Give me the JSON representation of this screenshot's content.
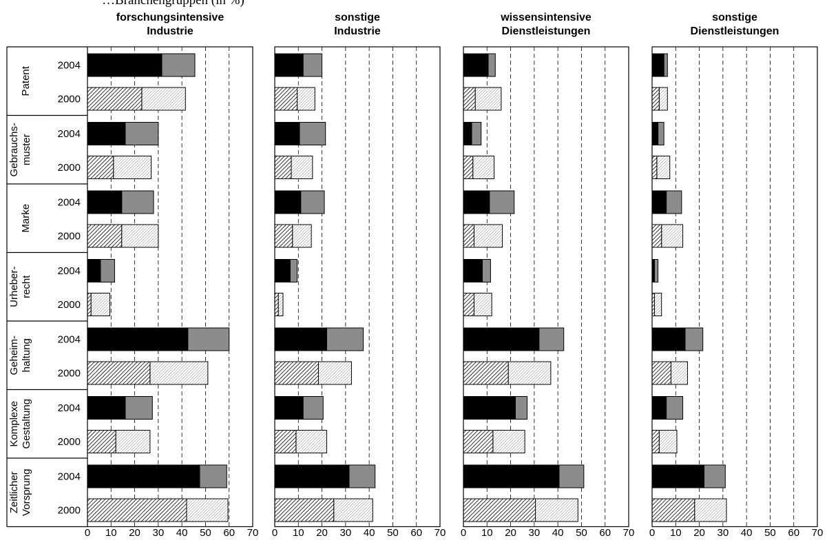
{
  "caption": "…Branchengruppen (in %)",
  "chart_data": {
    "type": "bar",
    "orientation": "horizontal",
    "stacked": true,
    "xlim": [
      0,
      70
    ],
    "xticks": [
      "0",
      "10",
      "20",
      "30",
      "40",
      "50",
      "60",
      "70"
    ],
    "grid": "vertical dashed lines",
    "groups": [
      "Patent",
      "Gebrauchs-\nmuster",
      "Marke",
      "Urheber-\nrecht",
      "Geheim-\nhaltung",
      "Komplexe\nGestaltung",
      "Zeitlicher\nVorsprung"
    ],
    "years": [
      "2004",
      "2000"
    ],
    "panels": [
      {
        "title": "forschungsintensive\nIndustrie",
        "values": [
          [
            [
              31.5,
              45.5
            ],
            [
              23.0,
              41.5
            ]
          ],
          [
            [
              16.0,
              30.0
            ],
            [
              11.0,
              27.0
            ]
          ],
          [
            [
              14.5,
              28.0
            ],
            [
              14.5,
              30.0
            ]
          ],
          [
            [
              5.5,
              11.5
            ],
            [
              1.5,
              9.5
            ]
          ],
          [
            [
              42.5,
              60.0
            ],
            [
              26.5,
              51.0
            ]
          ],
          [
            [
              16.0,
              27.5
            ],
            [
              12.0,
              26.5
            ]
          ],
          [
            [
              47.5,
              59.0
            ],
            [
              42.0,
              59.5
            ]
          ]
        ]
      },
      {
        "title": "sonstige\nIndustrie",
        "values": [
          [
            [
              12.0,
              20.0
            ],
            [
              9.5,
              17.0
            ]
          ],
          [
            [
              10.5,
              21.5
            ],
            [
              7.0,
              16.0
            ]
          ],
          [
            [
              11.0,
              21.0
            ],
            [
              7.5,
              15.5
            ]
          ],
          [
            [
              6.5,
              9.5
            ],
            [
              1.5,
              3.5
            ]
          ],
          [
            [
              22.0,
              37.5
            ],
            [
              18.5,
              32.5
            ]
          ],
          [
            [
              12.0,
              20.5
            ],
            [
              9.0,
              22.0
            ]
          ],
          [
            [
              31.5,
              42.5
            ],
            [
              25.0,
              41.5
            ]
          ]
        ]
      },
      {
        "title": "wissensintensive\nDienstleistungen",
        "values": [
          [
            [
              10.5,
              13.5
            ],
            [
              5.0,
              16.0
            ]
          ],
          [
            [
              3.5,
              7.5
            ],
            [
              4.0,
              13.0
            ]
          ],
          [
            [
              11.0,
              21.5
            ],
            [
              4.5,
              16.5
            ]
          ],
          [
            [
              8.0,
              11.5
            ],
            [
              4.5,
              12.0
            ]
          ],
          [
            [
              32.0,
              42.5
            ],
            [
              19.0,
              37.0
            ]
          ],
          [
            [
              22.0,
              27.0
            ],
            [
              12.5,
              26.0
            ]
          ],
          [
            [
              40.5,
              51.0
            ],
            [
              30.5,
              48.5
            ]
          ]
        ]
      },
      {
        "title": "sonstige\nDienstleistungen",
        "values": [
          [
            [
              5.0,
              6.5
            ],
            [
              3.0,
              6.5
            ]
          ],
          [
            [
              2.5,
              5.0
            ],
            [
              2.0,
              7.5
            ]
          ],
          [
            [
              6.0,
              12.5
            ],
            [
              4.0,
              13.0
            ]
          ],
          [
            [
              1.0,
              2.5
            ],
            [
              1.0,
              4.0
            ]
          ],
          [
            [
              14.0,
              21.5
            ],
            [
              8.0,
              15.0
            ]
          ],
          [
            [
              6.0,
              13.0
            ],
            [
              3.0,
              10.5
            ]
          ],
          [
            [
              22.0,
              31.0
            ],
            [
              18.0,
              31.5
            ]
          ]
        ]
      }
    ],
    "series_fill": {
      "2004": [
        "solid-black",
        "solid-grey"
      ],
      "2000": [
        "dense-hatch",
        "light-hatch"
      ]
    },
    "colors": {
      "black": "#000000",
      "grey": "#8c8c8c",
      "frame": "#000000"
    }
  }
}
